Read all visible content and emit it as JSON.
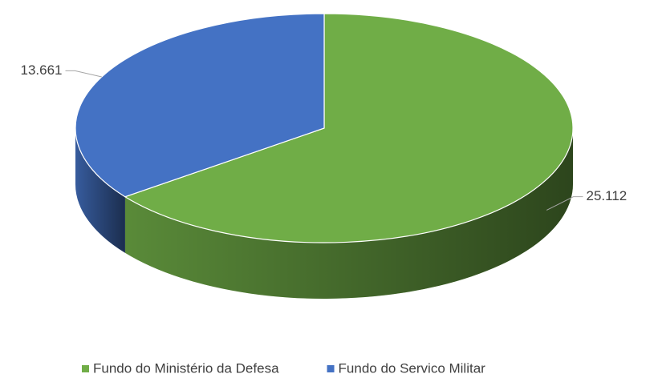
{
  "chart_data": {
    "type": "pie",
    "categories": [
      "Fundo do Ministério da Defesa",
      "Fundo do Servico Militar"
    ],
    "values": [
      25112,
      13661
    ],
    "value_labels": [
      "25.112",
      "13.661"
    ],
    "colors": [
      "#70ad47",
      "#4472c4"
    ],
    "legend": "bottom"
  }
}
